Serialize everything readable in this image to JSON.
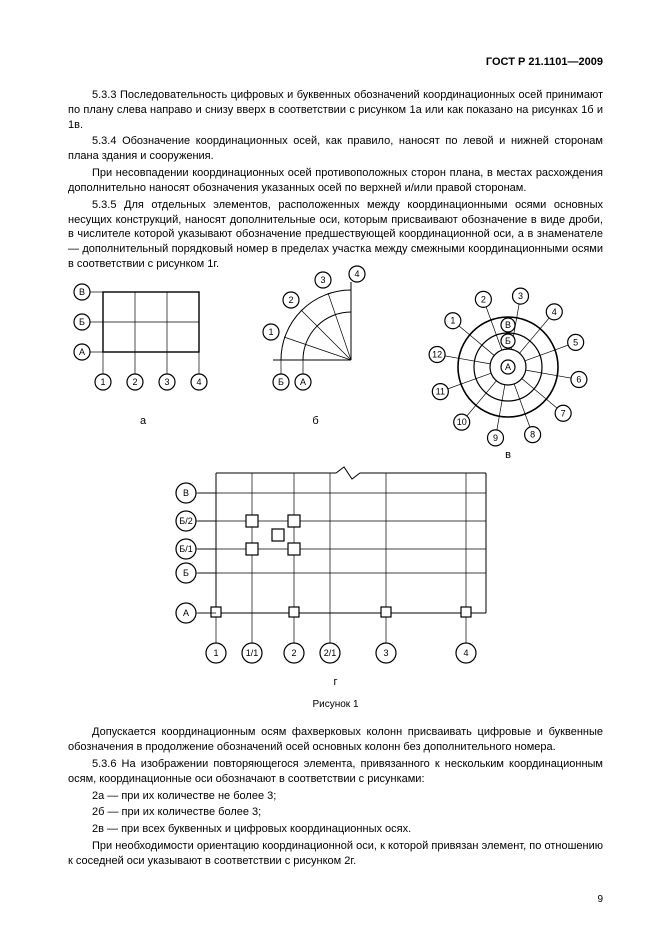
{
  "header": "ГОСТ Р 21.1101—2009",
  "p1": "5.3.3  Последовательность цифровых и буквенных обозначений координационных осей принимают по плану слева направо и снизу вверх в соответствии с рисунком 1а или как показано на рисунках 1б и 1в.",
  "p2": "5.3.4  Обозначение координационных осей, как правило, наносят по левой и нижней сторонам плана здания и сооружения.",
  "p3": "При несовпадении координационных осей противоположных сторон плана, в местах расхождения дополнительно наносят обозначения указанных осей по верхней и/или правой сторонам.",
  "p4": "5.3.5  Для отдельных элементов, расположенных между координационными осями основных несущих конструкций, наносят дополнительные оси, которым присваивают обозначение в виде дроби, в числителе которой указывают обозначение предшествующей координационной оси, а в знаменателе — дополнительный порядковый номер в пределах участка между смежными координационными осями в соответствии с рисунком 1г.",
  "p5": "Допускается координационным осям фахверковых колонн присваивать цифровые и буквенные обозначения в продолжение обозначений осей основных колонн без дополнительного номера.",
  "p6": "5.3.6  На изображении повторяющегося элемента, привязанного к нескольким координационным осям, координационные оси обозначают в соответствии с рисунками:",
  "p7": "2а — при их количестве не более 3;",
  "p8": "2б — при их количестве более 3;",
  "p9": "2в — при всех буквенных и цифровых координационных осях.",
  "p10": "При необходимости ориентацию координационной оси, к которой привязан элемент, по отношению к соседней оси указывают в соответствии с рисунком 2г.",
  "figcap": "Рисунок 1",
  "pagenum": "9",
  "figA": {
    "left": [
      "В",
      "Б",
      "А"
    ],
    "bottom": [
      "1",
      "2",
      "3",
      "4"
    ],
    "sub": "а"
  },
  "figB": {
    "arc": [
      "1",
      "2",
      "3",
      "4"
    ],
    "bottom": [
      "Б",
      "А"
    ],
    "sub": "б"
  },
  "figV": {
    "ring": [
      "1",
      "2",
      "3",
      "4",
      "5",
      "6",
      "7",
      "8",
      "9",
      "10",
      "11",
      "12"
    ],
    "inner": [
      "А",
      "Б",
      "В"
    ],
    "sub": "в"
  },
  "figG": {
    "left": [
      "В",
      "Б/2",
      "Б/1",
      "Б",
      "А"
    ],
    "bottom": [
      "1",
      "1/1",
      "2",
      "2/1",
      "3",
      "4"
    ],
    "sub": "г"
  }
}
